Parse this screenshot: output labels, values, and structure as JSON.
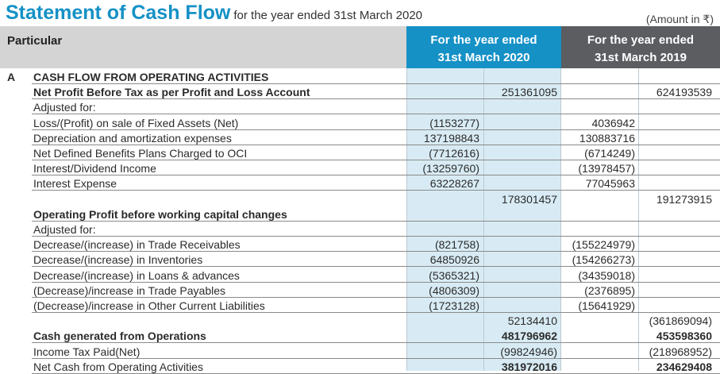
{
  "title": "Statement of Cash Flow",
  "subtitle": "for the year ended 31st March 2020",
  "amount_note": "(Amount in ₹)",
  "header": {
    "particular": "Particular",
    "cur_line1": "For the year ended",
    "cur_line2": "31st March 2020",
    "prev_line1": "For the year ended",
    "prev_line2": "31st March 2019"
  },
  "rows": [
    {
      "sec": "A",
      "label": "CASH FLOW FROM OPERATING ACTIVITIES",
      "bold": true,
      "line": true
    },
    {
      "label": "Net Profit Before Tax as per Profit and Loss Account",
      "bold": true,
      "v2": "251361095",
      "v4": "624193539",
      "line": true
    },
    {
      "label": "Adjusted for:",
      "line": true
    },
    {
      "label": "Loss/(Profit) on sale of Fixed Assets (Net)",
      "v1": "(1153277)",
      "v3": "4036942",
      "line": true
    },
    {
      "label": "Depreciation and amortization expenses",
      "v1": "137198843",
      "v3": "130883716",
      "line": true
    },
    {
      "label": "Net Defined Benefits Plans Charged to OCI",
      "v1": "(7712616)",
      "v3": "(6714249)",
      "line": true
    },
    {
      "label": "Interest/Dividend Income",
      "v1": "(13259760)",
      "v3": "(13978457)",
      "line": true
    },
    {
      "label": "Interest Expense",
      "v1": "63228267",
      "v3": "77045963",
      "line": true
    },
    {
      "label": "",
      "v2": "178301457",
      "v4": "191273915",
      "line": false
    },
    {
      "label": "Operating Profit before working capital changes",
      "bold": true,
      "line": true
    },
    {
      "label": "Adjusted for:",
      "line": true
    },
    {
      "label": "Decrease/(increase) in Trade Receivables",
      "v1": "(821758)",
      "v3": "(155224979)",
      "line": true
    },
    {
      "label": "Decrease/(increase) in Inventories",
      "v1": "64850926",
      "v3": "(154266273)",
      "line": true
    },
    {
      "label": "Decrease/(increase) in Loans & advances",
      "v1": "(5365321)",
      "v3": "(34359018)",
      "line": true
    },
    {
      "label": "(Decrease)/increase in Trade Payables",
      "v1": "(4806309)",
      "v3": "(2376895)",
      "line": true
    },
    {
      "label": "(Decrease)/increase in Other Current Liabilities",
      "v1": "(1723128)",
      "v3": "(15641929)",
      "line": true
    },
    {
      "label": "",
      "v2": "52134410",
      "v4": "(361869094)",
      "line": false
    },
    {
      "label": "Cash generated from Operations",
      "bold": true,
      "v2": "481796962",
      "v4": "453598360",
      "vbold": true,
      "line": true
    },
    {
      "label": "Income Tax Paid(Net)",
      "v2": "(99824946)",
      "v4": "(218968952)",
      "line": true
    },
    {
      "label": "Net Cash from Operating Activities",
      "v2": "381972016",
      "v4": "234629408",
      "vbold": true,
      "line": true
    }
  ]
}
